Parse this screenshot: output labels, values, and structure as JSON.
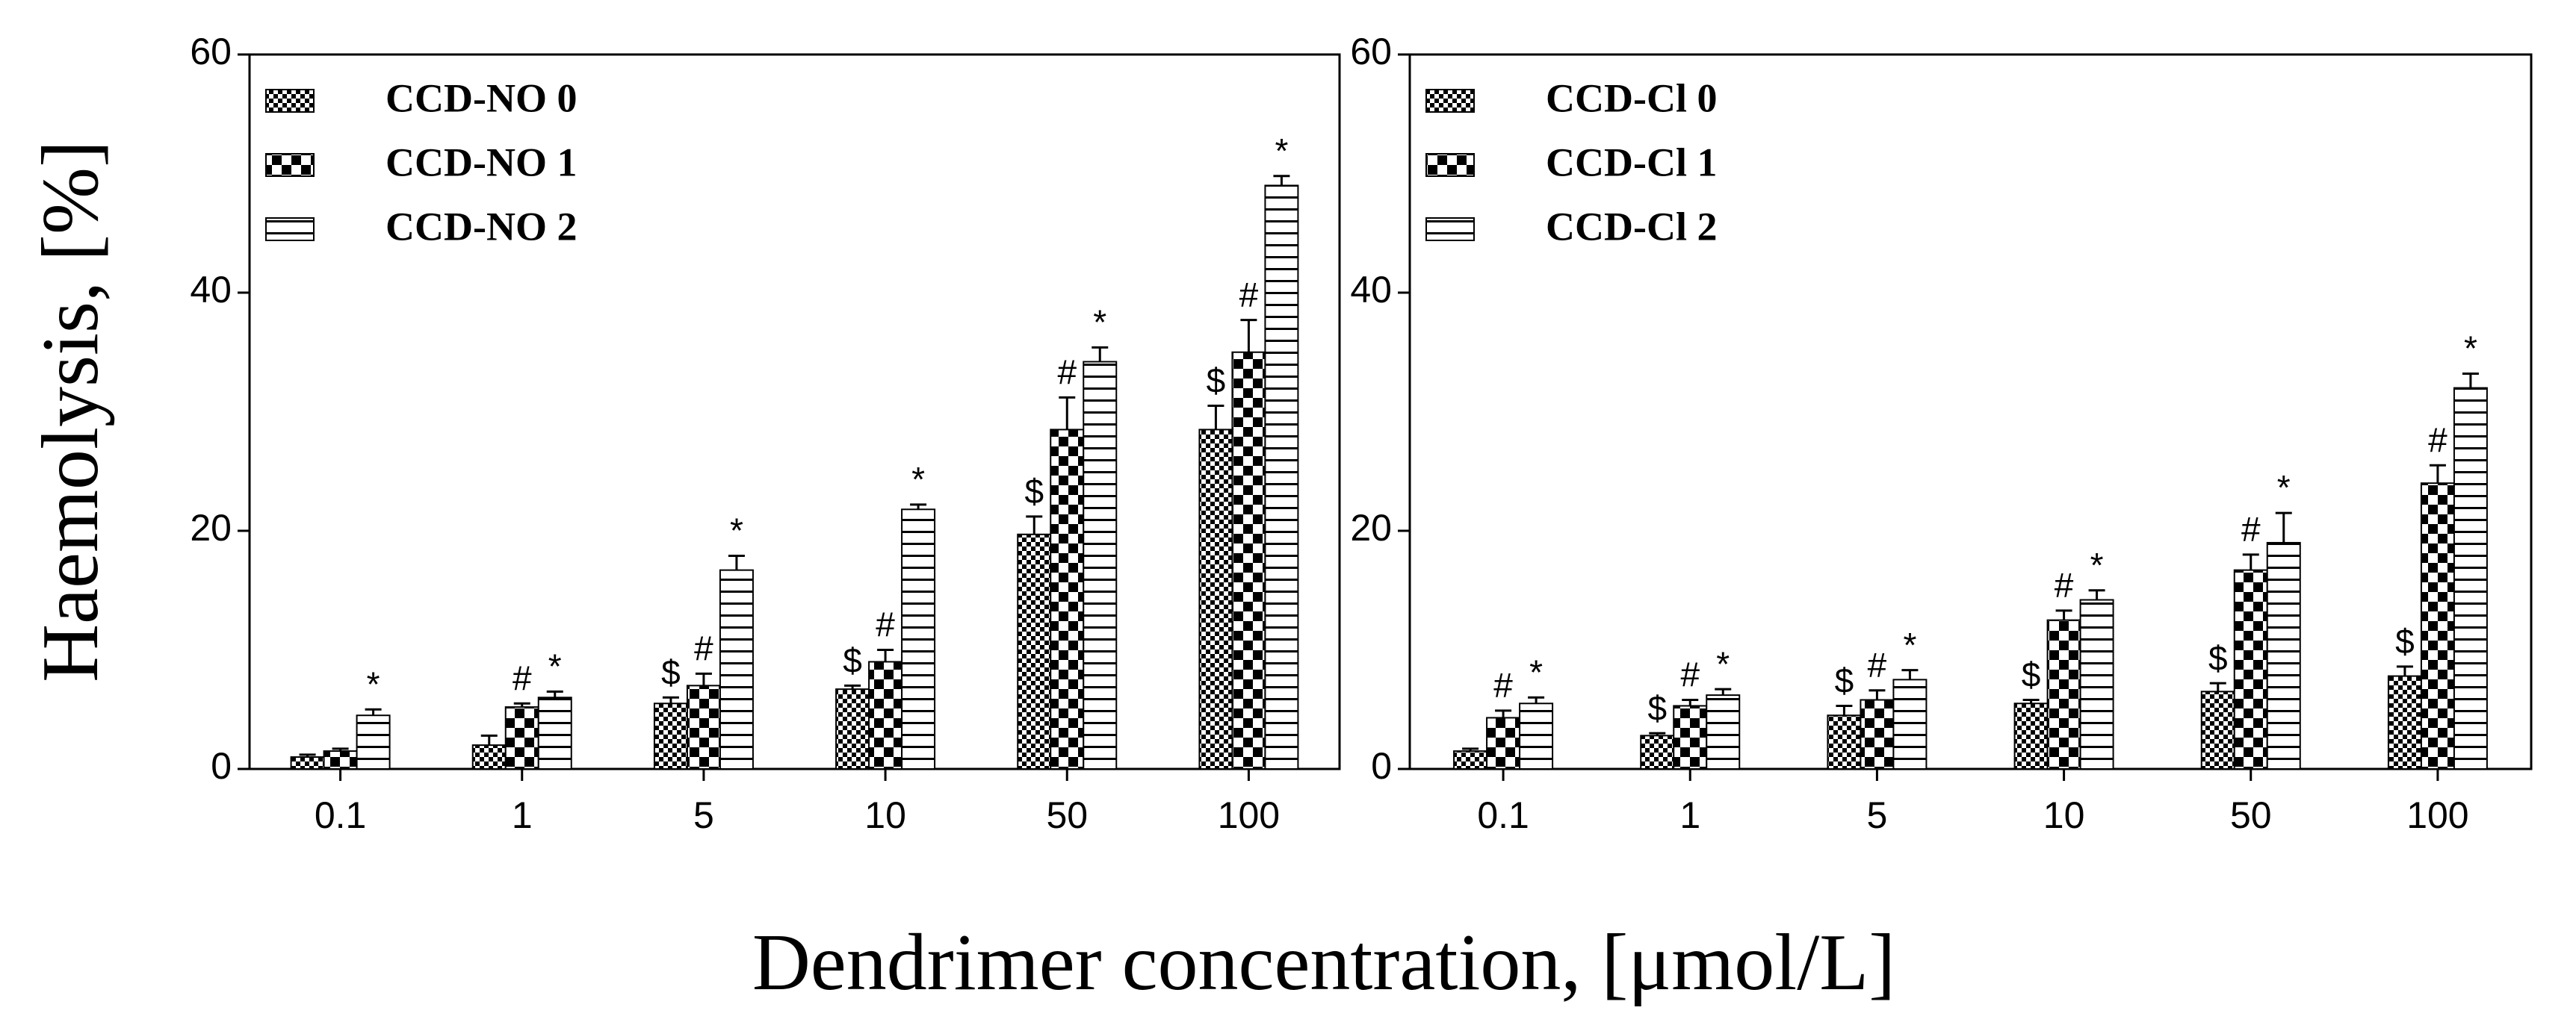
{
  "ylabel": "Haemolysis, [%]",
  "xlabel": "Dendrimer concentration, [μmol/L]",
  "chart_data": [
    {
      "type": "bar",
      "categories": [
        "0.1",
        "1",
        "5",
        "10",
        "50",
        "100"
      ],
      "ylim": [
        0,
        60
      ],
      "yticks": [
        0,
        20,
        40,
        60
      ],
      "legend": "upper left",
      "series": [
        {
          "name": "CCD-NO 0",
          "color": "#000000",
          "values": [
            1,
            2,
            5.5,
            6.7,
            19.7,
            28.5
          ],
          "errors": [
            0.2,
            0.8,
            0.5,
            0.3,
            1.5,
            2
          ],
          "markers": [
            null,
            null,
            "$",
            "$",
            "$",
            "$"
          ]
        },
        {
          "name": "CCD-NO 1",
          "color": "#000000",
          "values": [
            1.5,
            5.2,
            7,
            9,
            28.5,
            35
          ],
          "errors": [
            0.2,
            0.3,
            1,
            1,
            2.7,
            2.7
          ],
          "markers": [
            null,
            "#",
            "#",
            "#",
            "#",
            "#"
          ]
        },
        {
          "name": "CCD-NO 2",
          "color": "#000000",
          "values": [
            4.5,
            6,
            16.7,
            21.8,
            34.2,
            49
          ],
          "errors": [
            0.5,
            0.5,
            1.2,
            0.4,
            1.2,
            0.8
          ],
          "markers": [
            "*",
            "*",
            "*",
            "*",
            "*",
            "*"
          ]
        }
      ]
    },
    {
      "type": "bar",
      "categories": [
        "0.1",
        "1",
        "5",
        "10",
        "50",
        "100"
      ],
      "ylim": [
        0,
        60
      ],
      "yticks": [
        0,
        20,
        40,
        60
      ],
      "legend": "upper left",
      "series": [
        {
          "name": "CCD-Cl 0",
          "color": "#000000",
          "values": [
            1.5,
            2.8,
            4.5,
            5.5,
            6.5,
            7.8
          ],
          "errors": [
            0.2,
            0.2,
            0.8,
            0.3,
            0.7,
            0.8
          ],
          "markers": [
            null,
            "$",
            "$",
            "$",
            "$",
            "$"
          ]
        },
        {
          "name": "CCD-Cl 1",
          "color": "#000000",
          "values": [
            4.3,
            5.3,
            5.8,
            12.5,
            16.7,
            24
          ],
          "errors": [
            0.6,
            0.5,
            0.8,
            0.8,
            1.3,
            1.5
          ],
          "markers": [
            "#",
            "#",
            "#",
            "#",
            "#",
            "#"
          ]
        },
        {
          "name": "CCD-Cl 2",
          "color": "#000000",
          "values": [
            5.5,
            6.2,
            7.5,
            14.2,
            19,
            32
          ],
          "errors": [
            0.5,
            0.5,
            0.8,
            0.8,
            2.5,
            1.2
          ],
          "markers": [
            "*",
            "*",
            "*",
            "*",
            "*",
            "*"
          ]
        }
      ]
    }
  ]
}
